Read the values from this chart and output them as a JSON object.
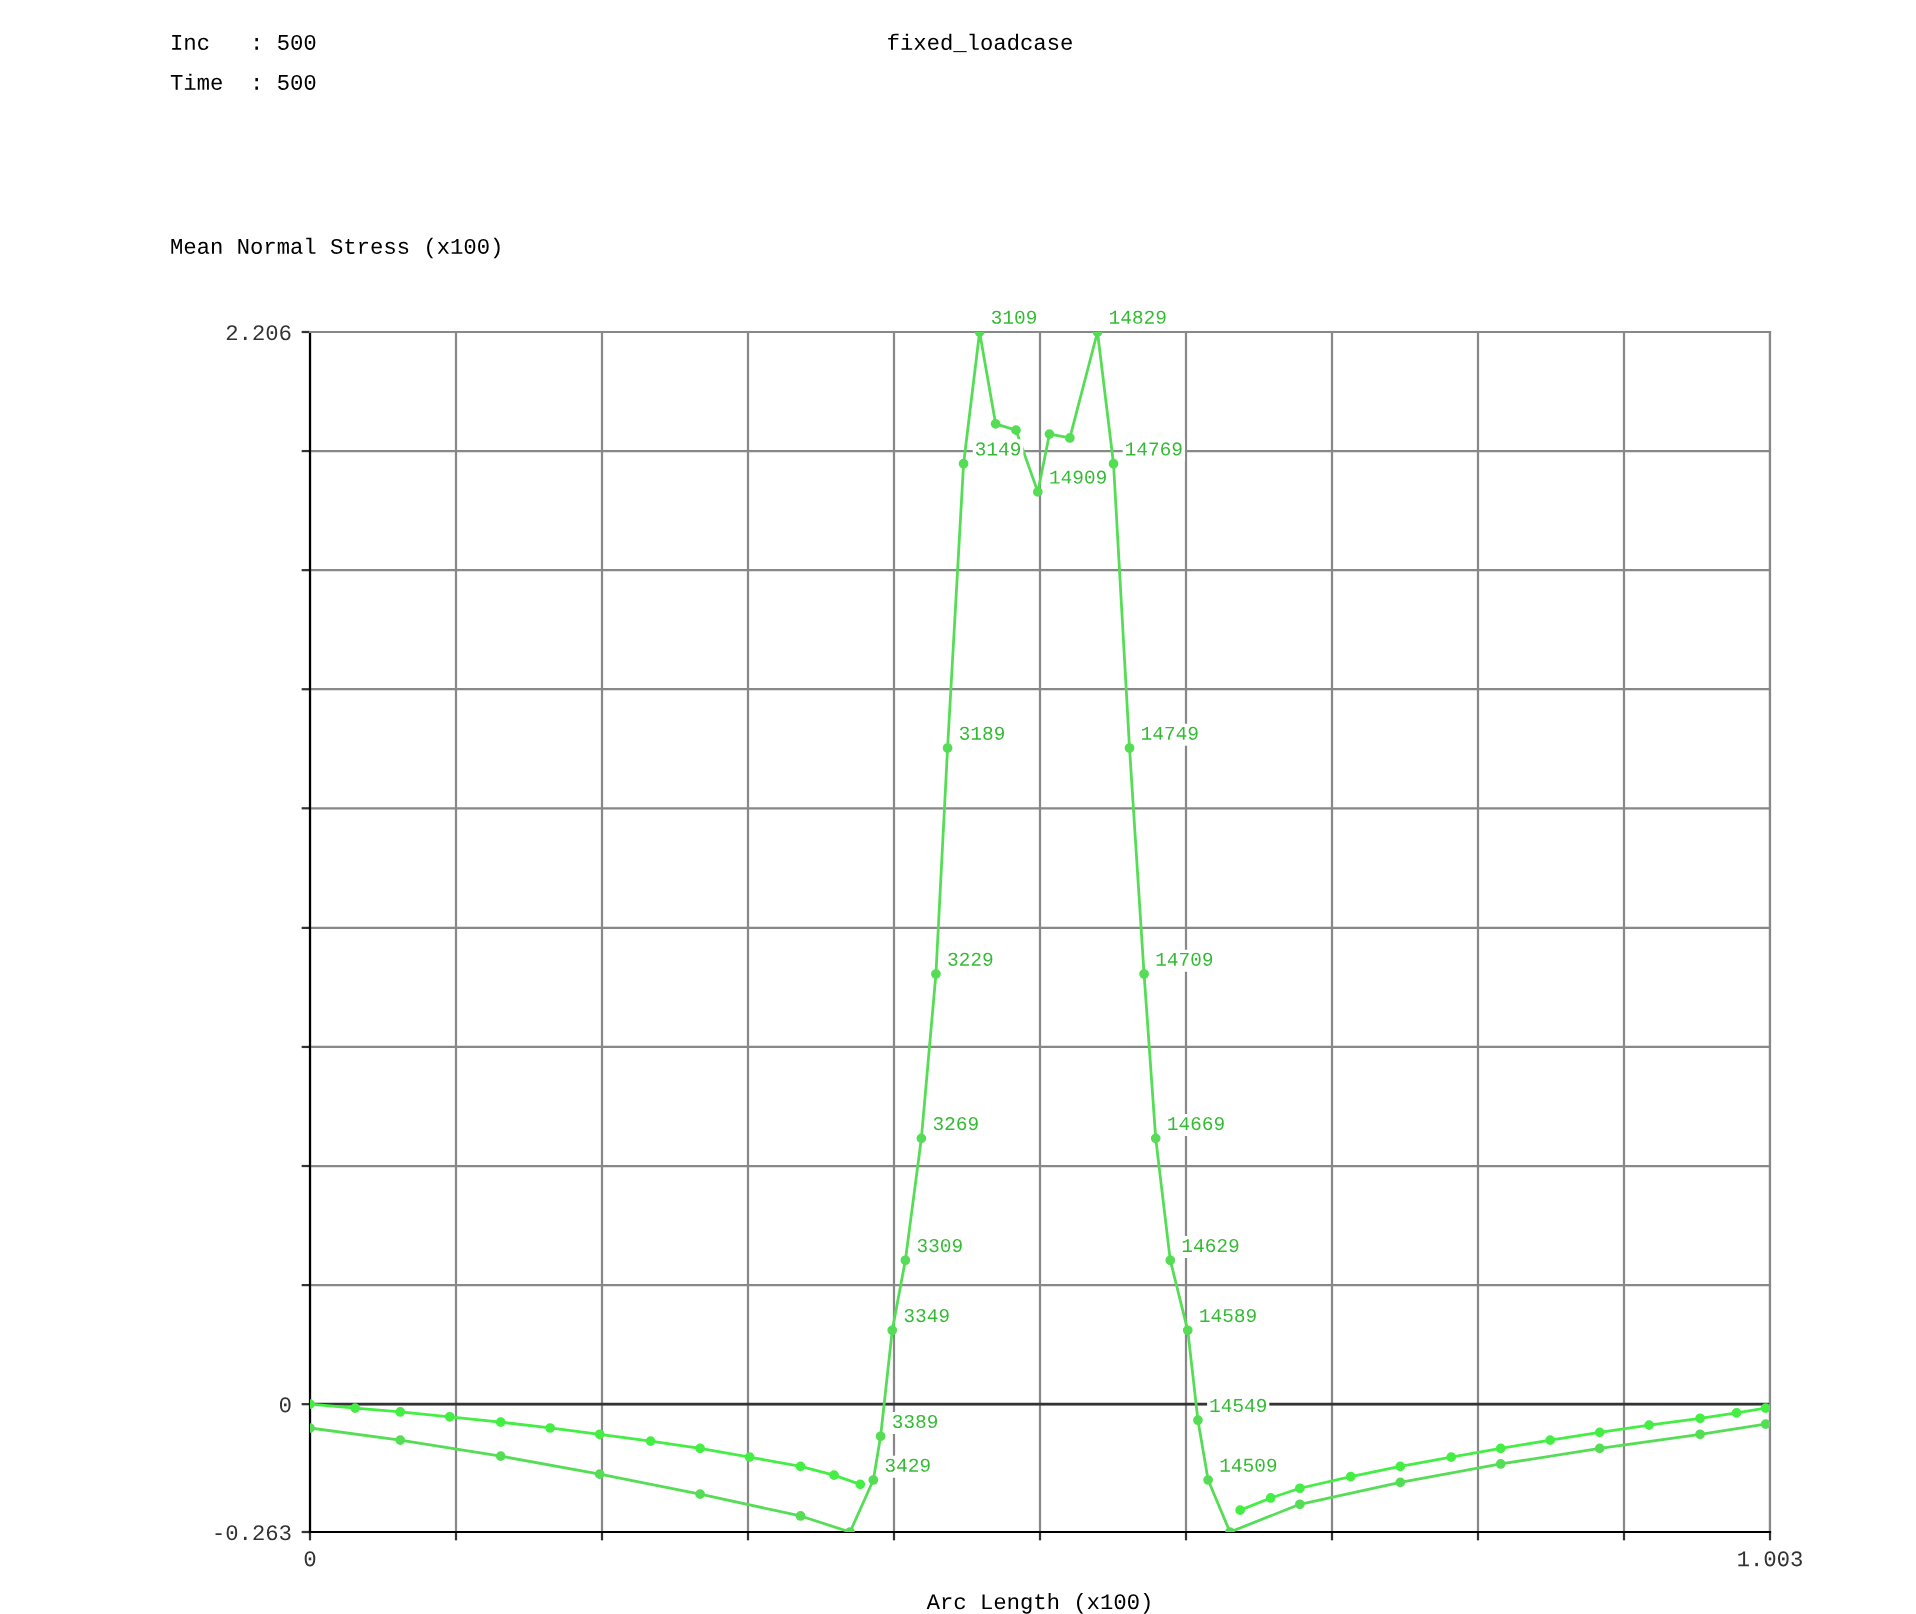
{
  "chart_data": {
    "type": "line",
    "title": "fixed_loadcase",
    "xlabel": "Arc Length (x100)",
    "ylabel": "Mean Normal Stress (x100)",
    "xlim": [
      0,
      1.003
    ],
    "ylim": [
      -0.263,
      2.206
    ],
    "xticks": [
      0,
      {
        "value": 0.1003,
        "label": null
      },
      {
        "value": 0.2006,
        "label": null
      },
      {
        "value": 0.3009,
        "label": null
      },
      {
        "value": 0.4012,
        "label": null
      },
      {
        "value": 0.5015,
        "label": null
      },
      {
        "value": 0.6018,
        "label": null
      },
      {
        "value": 0.7021,
        "label": null
      },
      {
        "value": 0.8024,
        "label": null
      },
      {
        "value": 0.9027,
        "label": null
      },
      1.003
    ],
    "yticks": [
      -0.263,
      0,
      {
        "value": 0.245,
        "label": null
      },
      {
        "value": 0.49,
        "label": null
      },
      {
        "value": 0.735,
        "label": null
      },
      {
        "value": 0.98,
        "label": null
      },
      {
        "value": 1.226,
        "label": null
      },
      {
        "value": 1.471,
        "label": null
      },
      {
        "value": 1.716,
        "label": null
      },
      {
        "value": 1.961,
        "label": null
      },
      2.206
    ],
    "grid": true,
    "marker": "circle",
    "line_style": "solid",
    "ref_lines": [
      {
        "axis": "y",
        "value": 0,
        "color": "#333333"
      }
    ],
    "series": [
      {
        "color": "#55dd55",
        "x": [
          0,
          0.062,
          0.131,
          0.199,
          0.268,
          0.337,
          0.371,
          0.387,
          0.392,
          0.4,
          0.409,
          0.42,
          0.43,
          0.438,
          0.449,
          0.46,
          0.471,
          0.485,
          0.5,
          0.508,
          0.522,
          0.541,
          0.552,
          0.563,
          0.573,
          0.581,
          0.591,
          0.603,
          0.61,
          0.617,
          0.632,
          0.68,
          0.749,
          0.818,
          0.886,
          0.955,
          1.0
        ],
        "values": [
          -0.049,
          -0.074,
          -0.107,
          -0.144,
          -0.185,
          -0.23,
          -0.263,
          -0.156,
          -0.066,
          0.152,
          0.296,
          0.547,
          0.885,
          1.35,
          1.935,
          2.206,
          2.017,
          2.004,
          1.877,
          1.996,
          1.988,
          2.206,
          1.935,
          1.35,
          0.885,
          0.547,
          0.296,
          0.152,
          -0.033,
          -0.156,
          -0.263,
          -0.206,
          -0.161,
          -0.123,
          -0.091,
          -0.062,
          -0.041
        ]
      },
      {
        "color": "#44ee44",
        "x": [
          0,
          0.031,
          0.062,
          0.096,
          0.131,
          0.165,
          0.199,
          0.234,
          0.268,
          0.302,
          0.337,
          0.36,
          0.378
        ],
        "values": [
          0,
          -0.008,
          -0.016,
          -0.026,
          -0.037,
          -0.049,
          -0.062,
          -0.076,
          -0.091,
          -0.109,
          -0.128,
          -0.146,
          -0.165
        ]
      },
      {
        "color": "#44ee44",
        "x": [
          0.639,
          0.66,
          0.68,
          0.715,
          0.749,
          0.784,
          0.818,
          0.852,
          0.886,
          0.92,
          0.955,
          0.98,
          1.0
        ],
        "values": [
          -0.218,
          -0.193,
          -0.173,
          -0.149,
          -0.128,
          -0.109,
          -0.091,
          -0.074,
          -0.058,
          -0.043,
          -0.029,
          -0.018,
          -0.008
        ]
      }
    ],
    "annotations": [
      "Inc   : 500",
      "Time  : 500",
      {
        "text": "3109",
        "x": 0.46,
        "y": 2.206
      },
      {
        "text": "14829",
        "x": 0.541,
        "y": 2.206
      },
      {
        "text": "3149",
        "x": 0.449,
        "y": 1.935
      },
      {
        "text": "14909",
        "x": 0.5,
        "y": 1.877
      },
      {
        "text": "14769",
        "x": 0.552,
        "y": 1.935
      },
      {
        "text": "3189",
        "x": 0.438,
        "y": 1.35
      },
      {
        "text": "14749",
        "x": 0.563,
        "y": 1.35
      },
      {
        "text": "3229",
        "x": 0.43,
        "y": 0.885
      },
      {
        "text": "14709",
        "x": 0.573,
        "y": 0.885
      },
      {
        "text": "3269",
        "x": 0.42,
        "y": 0.547
      },
      {
        "text": "14669",
        "x": 0.581,
        "y": 0.547
      },
      {
        "text": "3309",
        "x": 0.409,
        "y": 0.296
      },
      {
        "text": "14629",
        "x": 0.591,
        "y": 0.296
      },
      {
        "text": "3349",
        "x": 0.4,
        "y": 0.152
      },
      {
        "text": "14589",
        "x": 0.603,
        "y": 0.152
      },
      {
        "text": "3389",
        "x": 0.392,
        "y": -0.066
      },
      {
        "text": "14549",
        "x": 0.61,
        "y": -0.033
      },
      {
        "text": "3429",
        "x": 0.387,
        "y": -0.156
      },
      {
        "text": "14509",
        "x": 0.617,
        "y": -0.156
      }
    ]
  }
}
